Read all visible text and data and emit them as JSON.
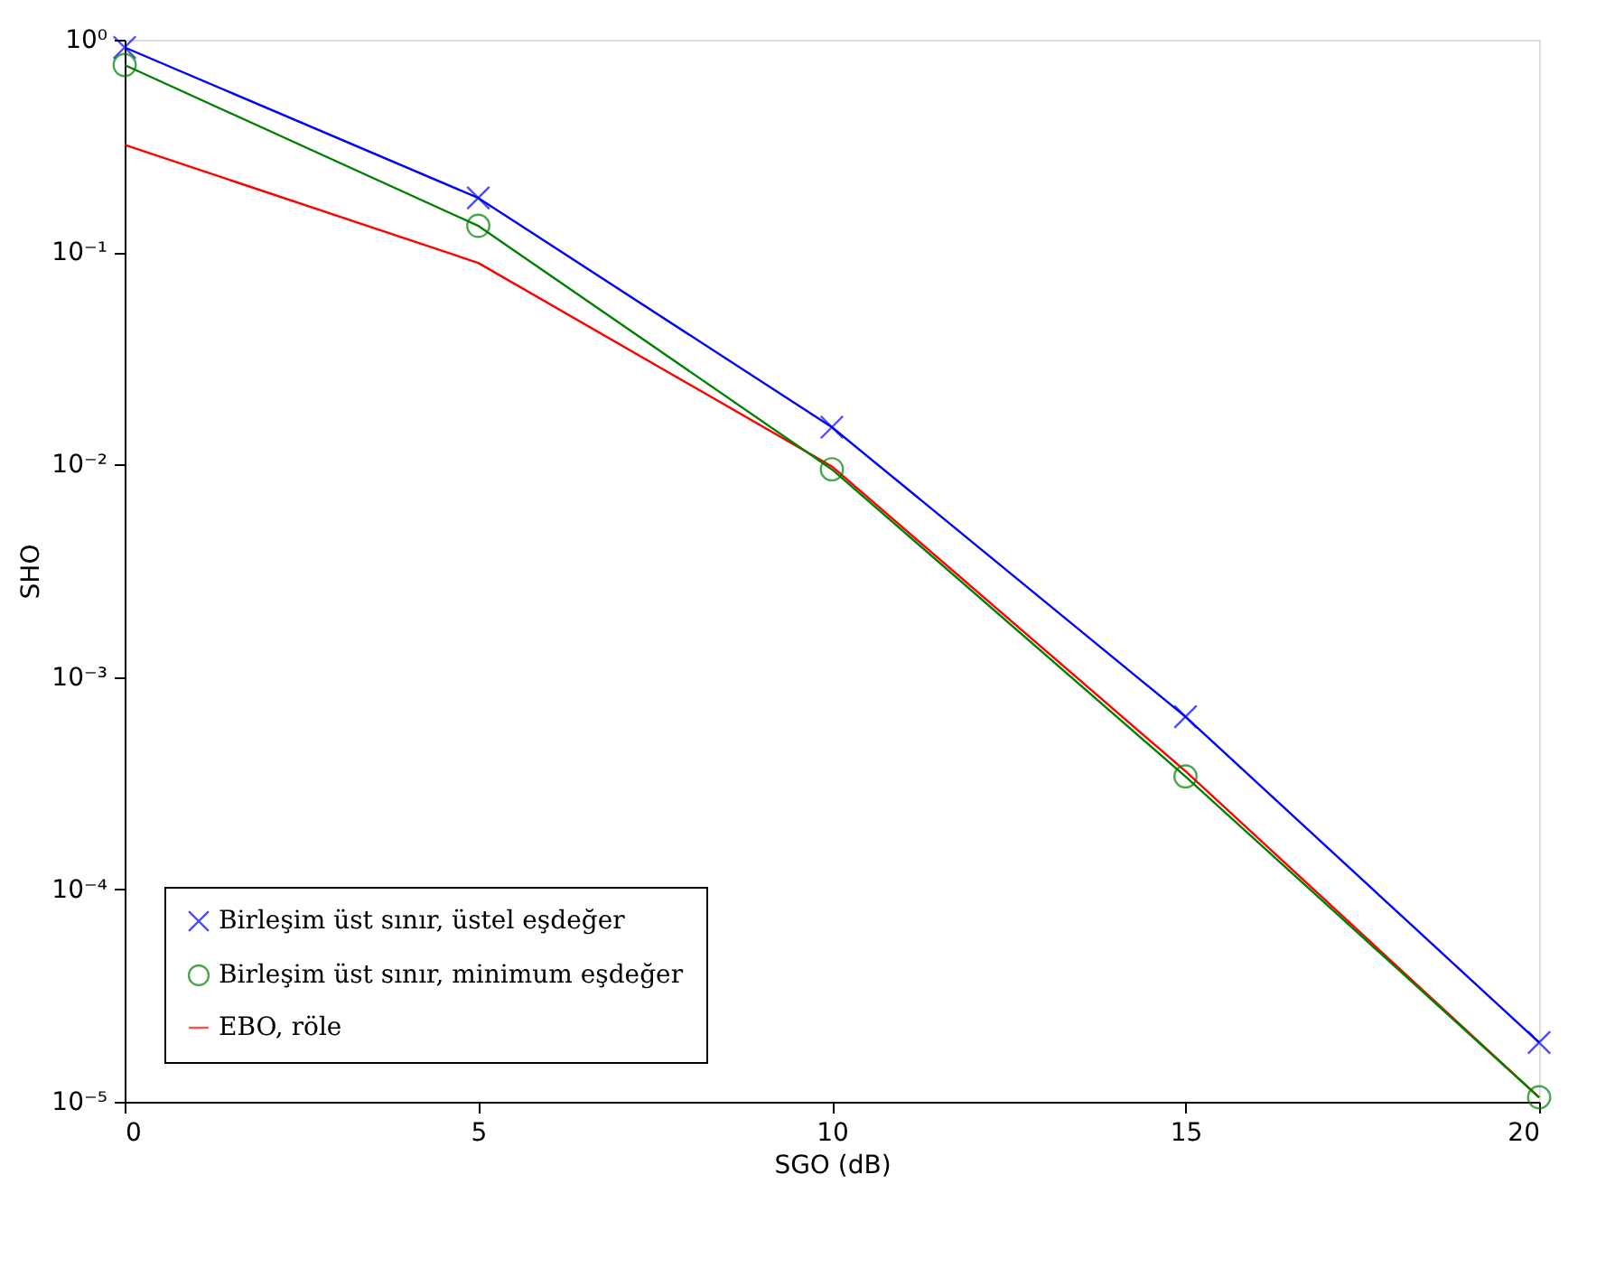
{
  "chart_data": {
    "type": "line",
    "xlabel": "SGO (dB)",
    "ylabel": "SHO",
    "log": "y",
    "x": [
      0,
      5,
      10,
      15,
      20
    ],
    "xlim": [
      0,
      20
    ],
    "xticks": [
      0,
      5,
      10,
      15,
      20
    ],
    "ylim": [
      1e-05,
      1
    ],
    "yticks": [
      {
        "value": 1,
        "label": "10⁰"
      },
      {
        "value": 0.1,
        "label": "10⁻¹"
      },
      {
        "value": 0.01,
        "label": "10⁻²"
      },
      {
        "value": 0.001,
        "label": "10⁻³"
      },
      {
        "value": 0.0001,
        "label": "10⁻⁴"
      },
      {
        "value": 1e-05,
        "label": "10⁻⁵"
      }
    ],
    "grid": false,
    "legend": "bottom left",
    "line_style": "solid",
    "series": [
      {
        "name": "Birleşim üst sınır, üstel eşdeğer",
        "color": "#0000ff",
        "marker": "cross",
        "values": [
          0.92,
          0.18,
          0.015,
          0.00065,
          1.9e-05
        ]
      },
      {
        "name": "Birleşim üst sınır, minimum eşdeğer",
        "color": "#008000",
        "marker": "circle",
        "values": [
          0.76,
          0.133,
          0.0095,
          0.00034,
          1.05e-05
        ]
      },
      {
        "name": "EBO, röle",
        "color": "#ff0000",
        "marker": "none",
        "values": [
          0.32,
          0.089,
          0.0098,
          0.00036,
          1.05e-05
        ]
      }
    ]
  }
}
